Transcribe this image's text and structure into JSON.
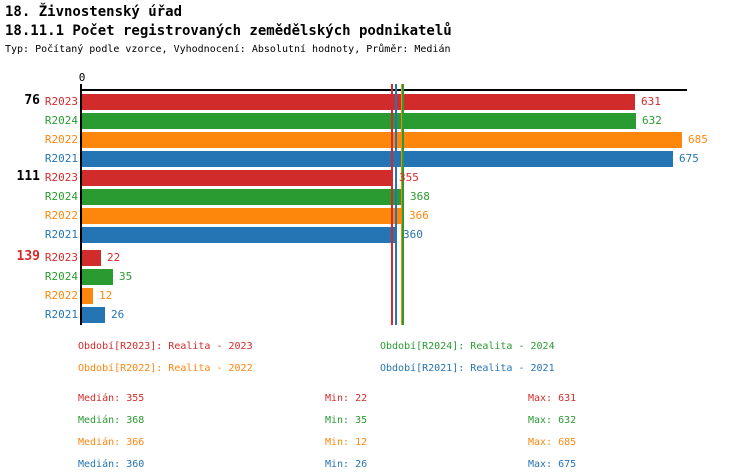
{
  "header": {
    "title": "18. Živnostenský úřad",
    "subtitle": "18.11.1 Počet registrovaných zemědělských podnikatelů",
    "meta": "Typ: Počítaný podle vzorce, Vyhodnocení: Absolutní hodnoty, Průměr: Medián"
  },
  "colors": {
    "R2023": "#d22b2b",
    "R2024": "#2a9b31",
    "R2022": "#fd860d",
    "R2021": "#2575b4",
    "axis": "#000000"
  },
  "chart_data": {
    "type": "bar",
    "orientation": "horizontal",
    "title": "18.11.1 Počet registrovaných zemědělských podnikatelů",
    "axis_zero_label": "0",
    "xlim": [
      0,
      685
    ],
    "categories": [
      "76",
      "111",
      "139"
    ],
    "bar_order_per_group": [
      "R2023",
      "R2024",
      "R2022",
      "R2021"
    ],
    "groups": [
      {
        "label": "76",
        "label_color": "#000000",
        "bars": [
          {
            "series": "R2023",
            "value": 631
          },
          {
            "series": "R2024",
            "value": 632
          },
          {
            "series": "R2022",
            "value": 685
          },
          {
            "series": "R2021",
            "value": 675
          }
        ]
      },
      {
        "label": "111",
        "label_color": "#000000",
        "bars": [
          {
            "series": "R2023",
            "value": 355
          },
          {
            "series": "R2024",
            "value": 368
          },
          {
            "series": "R2022",
            "value": 366
          },
          {
            "series": "R2021",
            "value": 360
          }
        ]
      },
      {
        "label": "139",
        "label_color": "#d22b2b",
        "bars": [
          {
            "series": "R2023",
            "value": 22
          },
          {
            "series": "R2024",
            "value": 35
          },
          {
            "series": "R2022",
            "value": 12
          },
          {
            "series": "R2021",
            "value": 26
          }
        ]
      }
    ],
    "medians": [
      {
        "series": "R2023",
        "value": 355
      },
      {
        "series": "R2021",
        "value": 360
      },
      {
        "series": "R2022",
        "value": 366
      },
      {
        "series": "R2024",
        "value": 368
      }
    ]
  },
  "legend": {
    "items": [
      {
        "series": "R2023",
        "label": "Období[R2023]: Realita - 2023"
      },
      {
        "series": "R2024",
        "label": "Období[R2024]: Realita - 2024"
      },
      {
        "series": "R2022",
        "label": "Období[R2022]: Realita - 2022"
      },
      {
        "series": "R2021",
        "label": "Období[R2021]: Realita - 2021"
      }
    ]
  },
  "stats": {
    "labels": {
      "median": "Medián:",
      "min": "Min:",
      "max": "Max:"
    },
    "rows": [
      {
        "series": "R2023",
        "median": 355,
        "min": 22,
        "max": 631
      },
      {
        "series": "R2024",
        "median": 368,
        "min": 35,
        "max": 632
      },
      {
        "series": "R2022",
        "median": 366,
        "min": 12,
        "max": 685
      },
      {
        "series": "R2021",
        "median": 360,
        "min": 26,
        "max": 675
      }
    ]
  }
}
